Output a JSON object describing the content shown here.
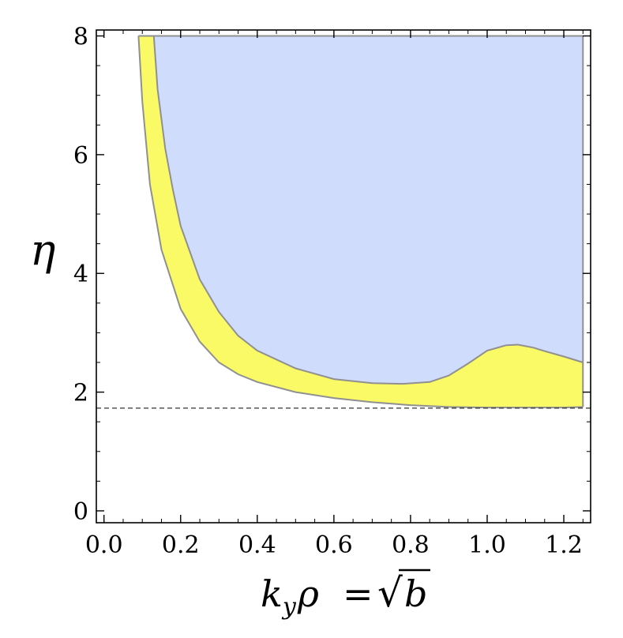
{
  "chart_data": {
    "type": "area",
    "xlabel_parts": {
      "k": "k",
      "sub": "y",
      "rho": "ρ",
      "eq": "=",
      "sqrt": "√",
      "b": "b"
    },
    "ylabel": "η",
    "xlim": [
      -0.02,
      1.27
    ],
    "ylim": [
      -0.2,
      8.1
    ],
    "xticks": [
      0.0,
      0.2,
      0.4,
      0.6,
      0.8,
      1.0,
      1.2
    ],
    "xtick_labels": [
      "0.0",
      "0.2",
      "0.4",
      "0.6",
      "0.8",
      "1.0",
      "1.2"
    ],
    "yticks": [
      0,
      2,
      4,
      6,
      8
    ],
    "ytick_labels": [
      "0",
      "2",
      "4",
      "6",
      "8"
    ],
    "dashed_line_y": 1.73,
    "colors": {
      "stable_region": "#fafa66",
      "unstable_region": "#d0dcfc",
      "boundary": "#909090",
      "dashed": "#333333"
    },
    "series": [
      {
        "role": "lower-boundary",
        "x": [
          0.09,
          0.1,
          0.12,
          0.15,
          0.2,
          0.25,
          0.3,
          0.35,
          0.4,
          0.5,
          0.6,
          0.7,
          0.8,
          0.9,
          1.0,
          1.05,
          1.1,
          1.2,
          1.25
        ],
        "y": [
          8.0,
          6.9,
          5.5,
          4.4,
          3.4,
          2.85,
          2.5,
          2.3,
          2.17,
          2.0,
          1.9,
          1.83,
          1.78,
          1.75,
          1.74,
          1.74,
          1.74,
          1.74,
          1.75
        ]
      },
      {
        "role": "upper-boundary",
        "x": [
          0.13,
          0.14,
          0.16,
          0.18,
          0.2,
          0.25,
          0.3,
          0.35,
          0.4,
          0.5,
          0.6,
          0.7,
          0.78,
          0.85,
          0.9,
          0.95,
          1.0,
          1.05,
          1.08,
          1.12,
          1.15,
          1.2,
          1.25
        ],
        "y": [
          8.0,
          7.1,
          6.1,
          5.4,
          4.8,
          3.9,
          3.35,
          2.95,
          2.7,
          2.4,
          2.22,
          2.15,
          2.14,
          2.17,
          2.28,
          2.48,
          2.7,
          2.79,
          2.8,
          2.75,
          2.69,
          2.6,
          2.5
        ]
      }
    ],
    "region_top": 8.0,
    "region_right": 1.25
  }
}
